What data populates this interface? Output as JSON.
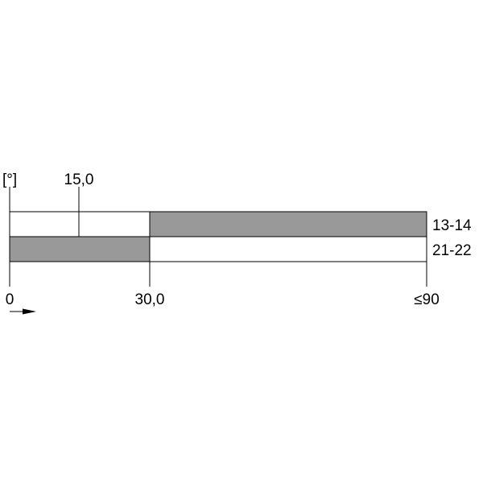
{
  "diagram": {
    "unit_label": "[°]",
    "ticks": {
      "zero": "0",
      "mid": "15,0",
      "switch": "30,0",
      "end": "≤90"
    },
    "rows": [
      {
        "label": "13-14",
        "closed_from": 30,
        "closed_to": 90
      },
      {
        "label": "21-22",
        "closed_from": 0,
        "closed_to": 30
      }
    ],
    "fill_color": "#999999",
    "direction": "arrow-right"
  }
}
